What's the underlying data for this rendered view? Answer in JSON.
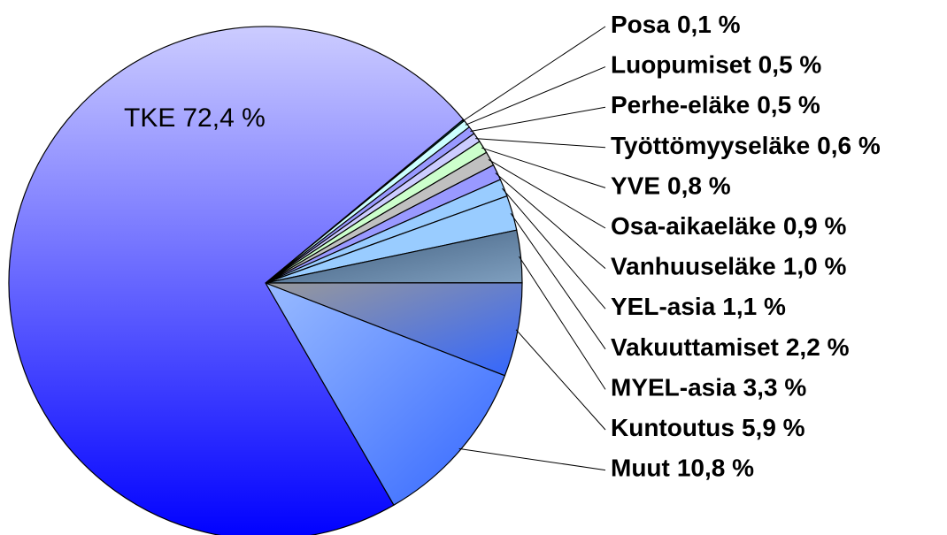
{
  "chart_data": {
    "type": "pie",
    "categories": [
      "Posa",
      "Luopumiset",
      "Perhe-eläke",
      "Työttömyyseläke",
      "YVE",
      "Osa-aikaeläke",
      "Vanhuuseläke",
      "YEL-asia",
      "Vakuuttamiset",
      "MYEL-asia",
      "Kuntoutus",
      "Muut",
      "TKE"
    ],
    "values": [
      0.1,
      0.5,
      0.5,
      0.6,
      0.8,
      0.9,
      1.0,
      1.1,
      2.2,
      3.3,
      5.9,
      10.8,
      72.4
    ],
    "value_labels": [
      "0,1 %",
      "0,5 %",
      "0,5 %",
      "0,6 %",
      "0,8 %",
      "0,9 %",
      "1,0 %",
      "1,1 %",
      "2,2 %",
      "3,3 %",
      "5,9 %",
      "10,8 %",
      "72,4 %"
    ],
    "colors": [
      [
        "#008080",
        "#008080"
      ],
      [
        "#ccffff",
        "#ccffff"
      ],
      [
        "#9999ff",
        "#9999ff"
      ],
      [
        "#ccccff",
        "#ccccff"
      ],
      [
        "#ccffcc",
        "#ccffcc"
      ],
      [
        "#c0c0c0",
        "#c0c0c0"
      ],
      [
        "#9999ff",
        "#9999ff"
      ],
      [
        "#99ccff",
        "#99ccff"
      ],
      [
        "#99ccff",
        "#99ccff"
      ],
      [
        "#3d5a7a",
        "#7f9fbf"
      ],
      [
        "#999999",
        "#3366ff"
      ],
      [
        "#99bbff",
        "#3366ff"
      ],
      [
        "#ccccff",
        "#0000ff"
      ]
    ]
  }
}
